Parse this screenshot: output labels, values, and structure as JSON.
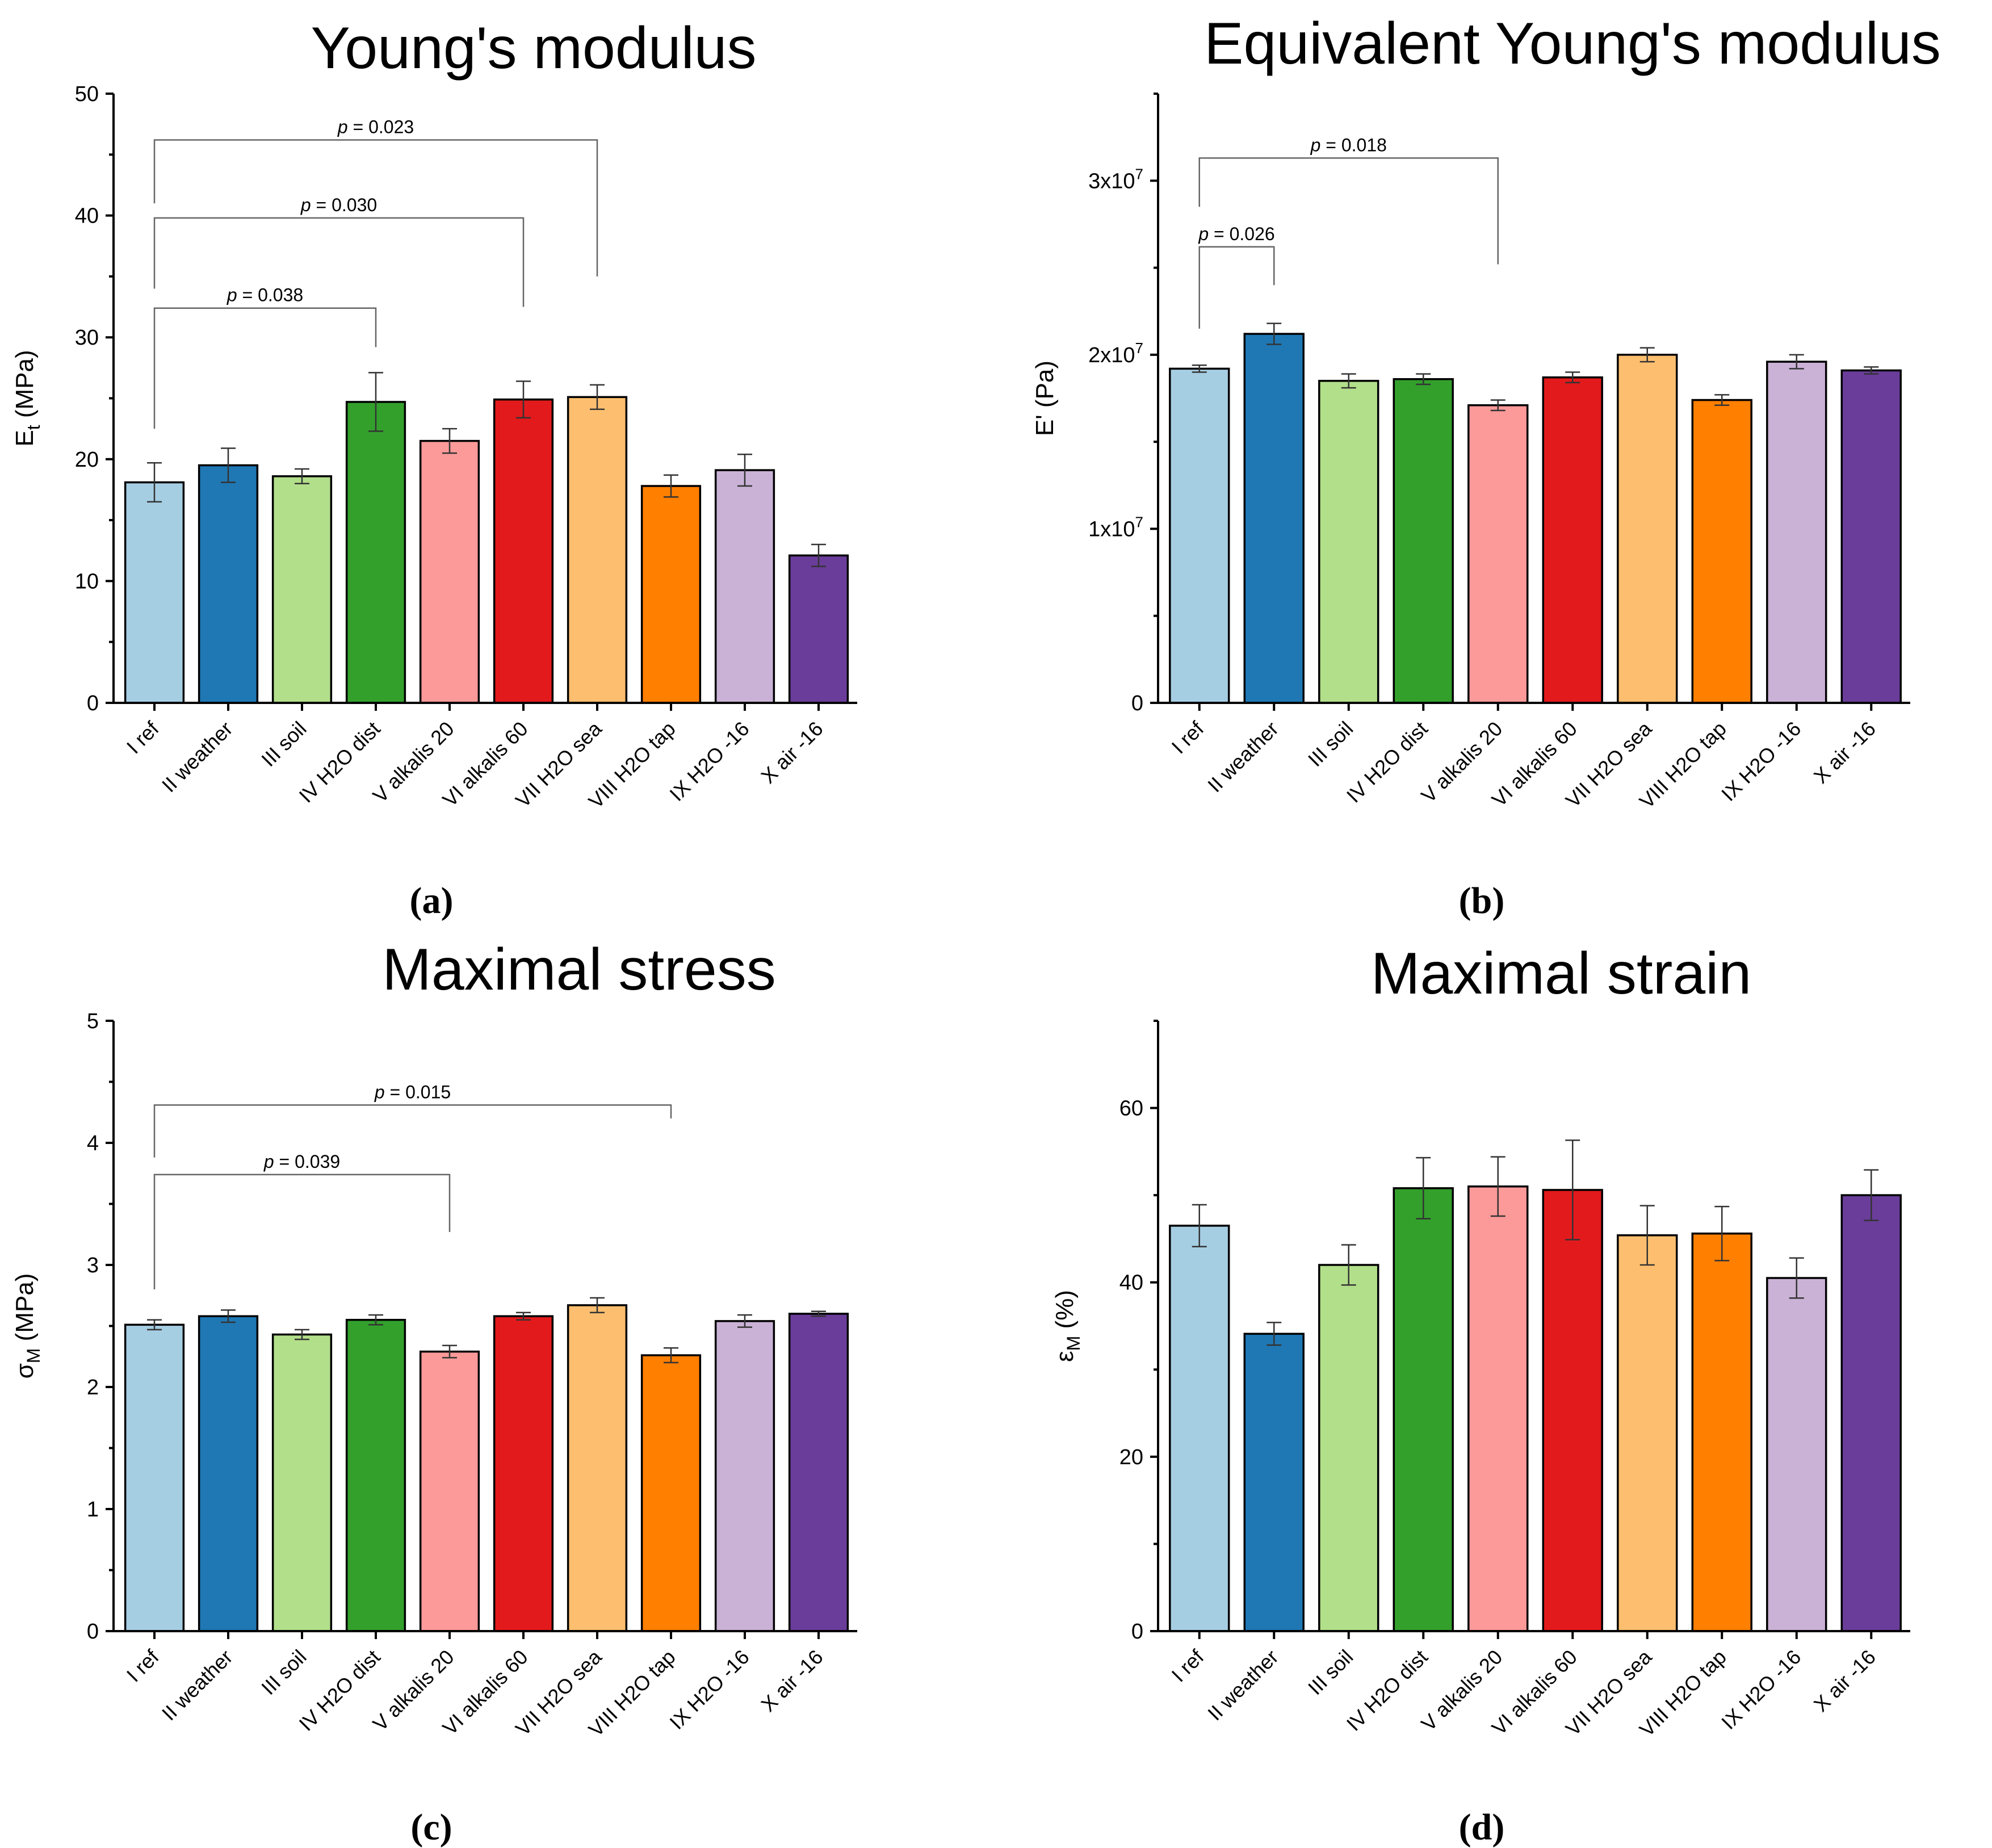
{
  "categories": [
    "I ref",
    "II weather",
    "III soil",
    "IV H2O dist",
    "V alkalis 20",
    "VI alkalis 60",
    "VII H2O sea",
    "VIII H2O tap",
    "IX H2O -16",
    "X air -16"
  ],
  "colors": [
    "#a6cee3",
    "#1f78b4",
    "#b2df8a",
    "#33a02c",
    "#fb9a99",
    "#e31a1c",
    "#fdbf6f",
    "#ff7f00",
    "#cab2d6",
    "#6a3d9a"
  ],
  "chart_data": [
    {
      "type": "bar",
      "panel": "(a)",
      "title": "Young's modulus",
      "ylabel": "E",
      "ylabel_sub": "t",
      "ylabel_unit": " (MPa)",
      "ylim": [
        0,
        50
      ],
      "yticks": [
        0,
        10,
        20,
        30,
        40,
        50
      ],
      "ytick_labels": [
        "0",
        "10",
        "20",
        "30",
        "40",
        "50"
      ],
      "values": [
        18.1,
        19.5,
        18.6,
        24.7,
        21.5,
        24.9,
        25.1,
        17.8,
        19.1,
        12.1
      ],
      "errors": [
        1.6,
        1.4,
        0.6,
        2.4,
        1.0,
        1.5,
        1.0,
        0.9,
        1.3,
        0.9
      ],
      "annotations": [
        {
          "label": "p = 0.038",
          "from": 0,
          "to": 3,
          "y": 32.4,
          "y_from": 22.5,
          "y_to": 29.2
        },
        {
          "label": "p = 0.030",
          "from": 0,
          "to": 5,
          "y": 39.8,
          "y_from": 34.0,
          "y_to": 32.5
        },
        {
          "label": "p = 0.023",
          "from": 0,
          "to": 6,
          "y": 46.2,
          "y_from": 41.0,
          "y_to": 35.0
        }
      ]
    },
    {
      "type": "bar",
      "panel": "(b)",
      "title": "Equivalent Young's modulus",
      "ylabel": "E' (Pa)",
      "ylabel_sub": "",
      "ylabel_unit": "",
      "ylim": [
        0,
        35000000
      ],
      "yticks": [
        0,
        10000000,
        20000000,
        30000000
      ],
      "ytick_labels": [
        "0",
        "1x10",
        "2x10",
        "3x10"
      ],
      "ytick_sups": [
        "",
        "7",
        "7",
        "7"
      ],
      "values": [
        19200000,
        21200000,
        18500000,
        18600000,
        17100000,
        18700000,
        20000000,
        17400000,
        19600000,
        19100000
      ],
      "errors": [
        200000,
        600000,
        400000,
        300000,
        300000,
        300000,
        400000,
        300000,
        400000,
        200000
      ],
      "annotations": [
        {
          "label": "p = 0.026",
          "from": 0,
          "to": 1,
          "y": 26200000,
          "y_from": 21500000,
          "y_to": 24000000
        },
        {
          "label": "p = 0.018",
          "from": 0,
          "to": 4,
          "y": 31300000,
          "y_from": 28500000,
          "y_to": 25200000
        }
      ]
    },
    {
      "type": "bar",
      "panel": "(c)",
      "title": "Maximal stress",
      "ylabel": "σ",
      "ylabel_sub": "M",
      "ylabel_unit": " (MPa)",
      "ylim": [
        0,
        5
      ],
      "yticks": [
        0,
        1,
        2,
        3,
        4,
        5
      ],
      "ytick_labels": [
        "0",
        "1",
        "2",
        "3",
        "4",
        "5"
      ],
      "values": [
        2.51,
        2.58,
        2.43,
        2.55,
        2.29,
        2.58,
        2.67,
        2.26,
        2.54,
        2.6
      ],
      "errors": [
        0.04,
        0.05,
        0.04,
        0.04,
        0.05,
        0.03,
        0.06,
        0.06,
        0.05,
        0.02
      ],
      "annotations": [
        {
          "label": "p = 0.039",
          "from": 0,
          "to": 4,
          "y": 3.74,
          "y_from": 2.8,
          "y_to": 3.27
        },
        {
          "label": "p = 0.015",
          "from": 0,
          "to": 7,
          "y": 4.31,
          "y_from": 3.88,
          "y_to": 4.2
        }
      ]
    },
    {
      "type": "bar",
      "panel": "(d)",
      "title": "Maximal strain",
      "ylabel": "ε",
      "ylabel_sub": "M",
      "ylabel_unit": " (%)",
      "ylim": [
        0,
        70
      ],
      "yticks": [
        0,
        20,
        40,
        60
      ],
      "ytick_labels": [
        "0",
        "20",
        "40",
        "60"
      ],
      "values": [
        46.5,
        34.1,
        42.0,
        50.8,
        51.0,
        50.6,
        45.4,
        45.6,
        40.5,
        50.0
      ],
      "errors": [
        2.4,
        1.3,
        2.3,
        3.5,
        3.4,
        5.7,
        3.4,
        3.1,
        2.3,
        2.9
      ],
      "annotations": []
    }
  ]
}
